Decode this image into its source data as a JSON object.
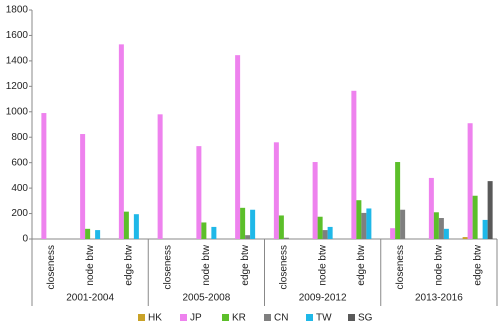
{
  "chart_data": {
    "type": "bar",
    "groups": [
      "2001-2004",
      "2005-2008",
      "2009-2012",
      "2013-2016"
    ],
    "categories": [
      "closeness",
      "node btw",
      "edge btw",
      "closeness",
      "node btw",
      "edge btw",
      "closeness",
      "node btw",
      "edge btw",
      "closeness",
      "node btw",
      "edge btw"
    ],
    "series": [
      {
        "name": "HK",
        "color": "#c9a227",
        "values": [
          0,
          0,
          0,
          0,
          0,
          0,
          0,
          0,
          0,
          0,
          0,
          15
        ]
      },
      {
        "name": "JP",
        "color": "#ee82ee",
        "values": [
          990,
          825,
          1530,
          980,
          730,
          1445,
          760,
          605,
          1165,
          85,
          480,
          910
        ]
      },
      {
        "name": "KR",
        "color": "#5cbf2a",
        "values": [
          0,
          80,
          215,
          0,
          130,
          245,
          185,
          175,
          305,
          605,
          210,
          340
        ]
      },
      {
        "name": "CN",
        "color": "#7f7f7f",
        "values": [
          0,
          0,
          0,
          0,
          0,
          30,
          10,
          70,
          205,
          230,
          165,
          0
        ]
      },
      {
        "name": "TW",
        "color": "#1fb8e8",
        "values": [
          0,
          70,
          195,
          0,
          95,
          230,
          0,
          95,
          240,
          0,
          80,
          150
        ]
      },
      {
        "name": "SG",
        "color": "#595959",
        "values": [
          0,
          0,
          0,
          0,
          0,
          0,
          0,
          0,
          0,
          0,
          0,
          455
        ]
      }
    ],
    "ylim": [
      0,
      1800
    ],
    "yticks": [
      0,
      200,
      400,
      600,
      800,
      1000,
      1200,
      1400,
      1600,
      1800
    ]
  }
}
